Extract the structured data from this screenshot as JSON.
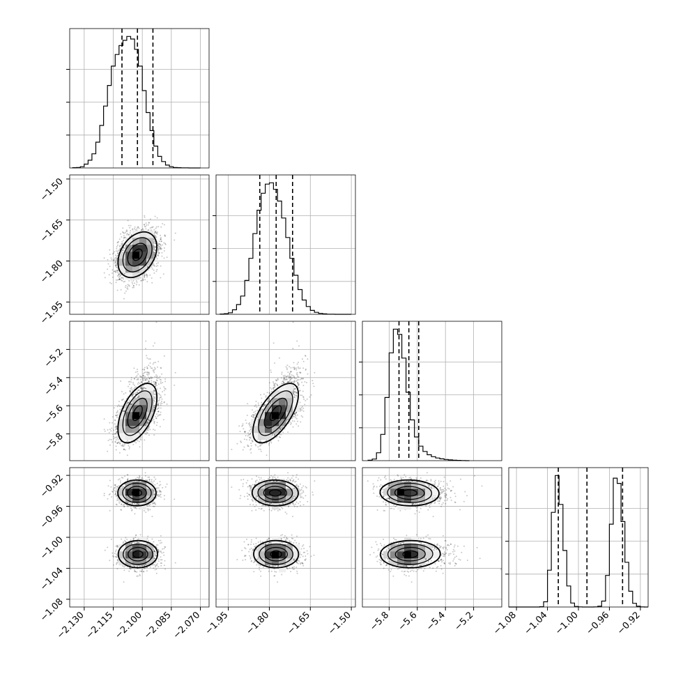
{
  "chart_data": {
    "type": "corner",
    "title": "",
    "parameters": [
      {
        "label": "",
        "range": [
          -2.1375,
          -2.0655
        ],
        "ticks": [
          -2.13,
          -2.115,
          -2.1,
          -2.085,
          -2.07
        ],
        "tick_labels": [
          "−2.130",
          "−2.115",
          "−2.100",
          "−2.085",
          "−2.070"
        ],
        "quantiles": [
          -2.1105,
          -2.1025,
          -2.0945
        ],
        "hist": {
          "edges": [
            -2.136,
            -2.134,
            -2.132,
            -2.13,
            -2.128,
            -2.126,
            -2.124,
            -2.122,
            -2.12,
            -2.118,
            -2.116,
            -2.114,
            -2.112,
            -2.11,
            -2.108,
            -2.106,
            -2.104,
            -2.102,
            -2.1,
            -2.098,
            -2.096,
            -2.094,
            -2.092,
            -2.09,
            -2.088,
            -2.086,
            -2.084,
            -2.082,
            -2.08,
            -2.078,
            -2.076,
            -2.074,
            -2.072,
            -2.07
          ],
          "counts": [
            2,
            4,
            10,
            30,
            60,
            110,
            200,
            330,
            480,
            640,
            790,
            880,
            950,
            990,
            1020,
            1000,
            920,
            790,
            600,
            430,
            290,
            170,
            90,
            50,
            22,
            10,
            4,
            2,
            1,
            1,
            0,
            0,
            0
          ]
        }
      },
      {
        "label": "",
        "range": [
          -1.995,
          -1.485
        ],
        "ticks": [
          -1.95,
          -1.8,
          -1.65,
          -1.5
        ],
        "tick_labels": [
          "−1.95",
          "−1.80",
          "−1.65",
          "−1.50"
        ],
        "quantiles": [
          -1.835,
          -1.775,
          -1.715
        ],
        "hist": {
          "edges": [
            -1.98,
            -1.965,
            -1.95,
            -1.935,
            -1.92,
            -1.905,
            -1.89,
            -1.875,
            -1.86,
            -1.845,
            -1.83,
            -1.815,
            -1.8,
            -1.785,
            -1.77,
            -1.755,
            -1.74,
            -1.725,
            -1.71,
            -1.695,
            -1.68,
            -1.665,
            -1.65,
            -1.635,
            -1.62,
            -1.605,
            -1.59,
            -1.575,
            -1.56,
            -1.545,
            -1.53,
            -1.515,
            -1.5
          ],
          "counts": [
            2,
            5,
            12,
            35,
            75,
            140,
            260,
            430,
            620,
            800,
            930,
            1000,
            1010,
            960,
            870,
            740,
            590,
            430,
            300,
            190,
            110,
            60,
            30,
            15,
            7,
            3,
            1,
            1,
            0,
            0,
            0,
            0
          ]
        }
      },
      {
        "label": "",
        "range": [
          -5.99,
          -5.0
        ],
        "ticks": [
          -5.8,
          -5.6,
          -5.4,
          -5.2
        ],
        "tick_labels": [
          "−5.8",
          "−5.6",
          "−5.4",
          "−5.2"
        ],
        "quantiles": [
          -5.73,
          -5.66,
          -5.59
        ],
        "hist": {
          "edges": [
            -5.95,
            -5.92,
            -5.89,
            -5.86,
            -5.83,
            -5.8,
            -5.77,
            -5.74,
            -5.71,
            -5.68,
            -5.65,
            -5.62,
            -5.59,
            -5.56,
            -5.53,
            -5.5,
            -5.47,
            -5.44,
            -5.41,
            -5.38,
            -5.35,
            -5.32,
            -5.29,
            -5.26,
            -5.23
          ],
          "counts": [
            3,
            12,
            60,
            200,
            480,
            820,
            1000,
            960,
            780,
            520,
            310,
            180,
            110,
            70,
            45,
            30,
            20,
            14,
            9,
            6,
            3,
            2,
            1,
            0
          ]
        }
      },
      {
        "label": "",
        "range": [
          -1.09,
          -0.91
        ],
        "ticks": [
          -1.08,
          -1.04,
          -1.0,
          -0.96,
          -0.92
        ],
        "tick_labels": [
          "−1.08",
          "−1.04",
          "−1.00",
          "−0.96",
          "−0.92"
        ],
        "quantiles": [
          -1.026,
          -0.989,
          -0.943
        ],
        "hist": {
          "edges": [
            -1.09,
            -1.085,
            -1.08,
            -1.075,
            -1.07,
            -1.065,
            -1.06,
            -1.055,
            -1.05,
            -1.045,
            -1.04,
            -1.035,
            -1.03,
            -1.025,
            -1.02,
            -1.015,
            -1.01,
            -1.005,
            -1.0,
            -0.995,
            -0.99,
            -0.985,
            -0.98,
            -0.975,
            -0.97,
            -0.965,
            -0.96,
            -0.955,
            -0.95,
            -0.945,
            -0.94,
            -0.935,
            -0.93,
            -0.925,
            -0.92,
            -0.915,
            -0.91
          ],
          "counts": [
            0,
            0,
            0,
            0,
            0,
            0,
            0,
            0,
            2,
            40,
            280,
            720,
            1000,
            780,
            430,
            160,
            30,
            4,
            1,
            0,
            0,
            0,
            1,
            6,
            45,
            240,
            630,
            980,
            940,
            650,
            340,
            120,
            28,
            6,
            1,
            0
          ]
        }
      }
    ],
    "density": {
      "means": [
        -2.1025,
        -1.775,
        -5.66
      ],
      "sds": [
        0.005,
        0.042,
        0.085
      ],
      "corr": [
        [
          1,
          0.35,
          0.55
        ],
        [
          0.35,
          1,
          0.65
        ],
        [
          0.55,
          0.65,
          1
        ]
      ],
      "p3_modes": [
        {
          "mean": -0.943,
          "sd": 0.0085,
          "weight": 0.5
        },
        {
          "mean": -1.022,
          "sd": 0.0085,
          "weight": 0.5
        }
      ]
    },
    "styles": {
      "hist_color": "#000000",
      "grid_color": "#b0b0b0",
      "dens_max": "#000000",
      "dens_mid": "#707070",
      "dens_min": "#f4f4f4",
      "point_color": "#000000"
    },
    "grid": true,
    "legend": "none"
  }
}
